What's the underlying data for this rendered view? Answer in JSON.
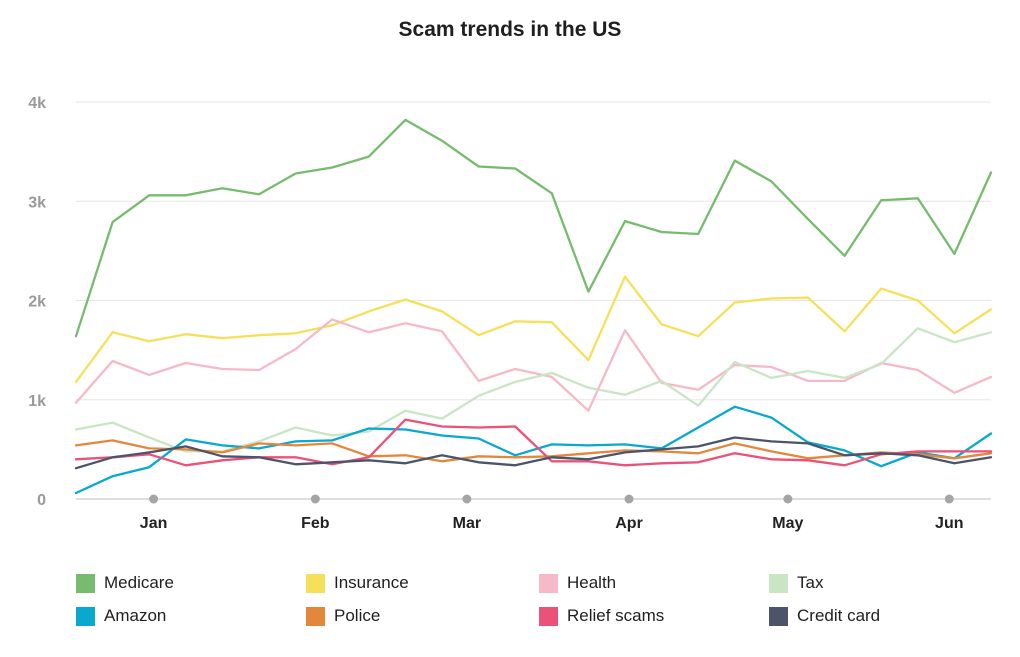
{
  "chart_data": {
    "type": "line",
    "title": "Scam trends in the US",
    "xlabel": "",
    "ylabel": "",
    "ylim": [
      0,
      4000
    ],
    "y_ticks": [
      {
        "value": 0,
        "label": "0"
      },
      {
        "value": 1000,
        "label": "1k"
      },
      {
        "value": 2000,
        "label": "2k"
      },
      {
        "value": 3000,
        "label": "3k"
      },
      {
        "value": 4000,
        "label": "4k"
      }
    ],
    "x_range": [
      0,
      25
    ],
    "x_ticks": [
      {
        "x": 2.12,
        "label": "Jan"
      },
      {
        "x": 6.54,
        "label": "Feb"
      },
      {
        "x": 10.68,
        "label": "Mar"
      },
      {
        "x": 15.11,
        "label": "Apr"
      },
      {
        "x": 19.45,
        "label": "May"
      },
      {
        "x": 23.86,
        "label": "Jun"
      }
    ],
    "grid": true,
    "legend_position": "bottom",
    "series": [
      {
        "name": "Medicare",
        "color": "#77bb6e",
        "values": [
          1640,
          2790,
          3060,
          3060,
          3130,
          3070,
          3280,
          3340,
          3450,
          3820,
          3610,
          3350,
          3330,
          3080,
          2090,
          2800,
          2690,
          2670,
          3410,
          3200,
          2820,
          2450,
          3010,
          3030,
          2470,
          3290
        ]
      },
      {
        "name": "Insurance",
        "color": "#f6e05a",
        "values": [
          1180,
          1680,
          1590,
          1660,
          1620,
          1650,
          1670,
          1750,
          1890,
          2010,
          1890,
          1650,
          1790,
          1780,
          1400,
          2240,
          1760,
          1640,
          1980,
          2020,
          2030,
          1690,
          2120,
          2000,
          1670,
          1910
        ]
      },
      {
        "name": "Health",
        "color": "#f6b9c8",
        "values": [
          970,
          1390,
          1250,
          1370,
          1310,
          1300,
          1510,
          1810,
          1680,
          1770,
          1690,
          1190,
          1310,
          1230,
          890,
          1700,
          1170,
          1100,
          1350,
          1330,
          1190,
          1190,
          1370,
          1300,
          1070,
          1230
        ]
      },
      {
        "name": "Tax",
        "color": "#c9e5c4",
        "values": [
          700,
          770,
          620,
          480,
          480,
          580,
          720,
          640,
          680,
          890,
          810,
          1040,
          1180,
          1270,
          1120,
          1050,
          1190,
          940,
          1380,
          1220,
          1290,
          1220,
          1360,
          1720,
          1580,
          1680
        ]
      },
      {
        "name": "Amazon",
        "color": "#08a8cf",
        "values": [
          60,
          230,
          320,
          600,
          540,
          510,
          580,
          590,
          710,
          700,
          640,
          610,
          440,
          550,
          540,
          550,
          510,
          720,
          930,
          820,
          570,
          490,
          330,
          470,
          410,
          660
        ]
      },
      {
        "name": "Police",
        "color": "#e3883b",
        "values": [
          540,
          590,
          510,
          500,
          470,
          560,
          540,
          560,
          430,
          440,
          380,
          430,
          420,
          430,
          460,
          490,
          480,
          460,
          560,
          480,
          410,
          440,
          470,
          450,
          410,
          460
        ]
      },
      {
        "name": "Relief scams",
        "color": "#ec5177",
        "values": [
          400,
          420,
          450,
          340,
          390,
          420,
          420,
          350,
          420,
          800,
          730,
          720,
          730,
          380,
          380,
          340,
          360,
          370,
          460,
          400,
          390,
          340,
          450,
          480,
          480,
          480
        ]
      },
      {
        "name": "Credit card",
        "color": "#4b5468",
        "values": [
          310,
          420,
          470,
          530,
          430,
          420,
          350,
          370,
          390,
          360,
          440,
          370,
          340,
          420,
          400,
          470,
          500,
          530,
          620,
          580,
          560,
          440,
          460,
          440,
          360,
          420
        ]
      }
    ]
  }
}
